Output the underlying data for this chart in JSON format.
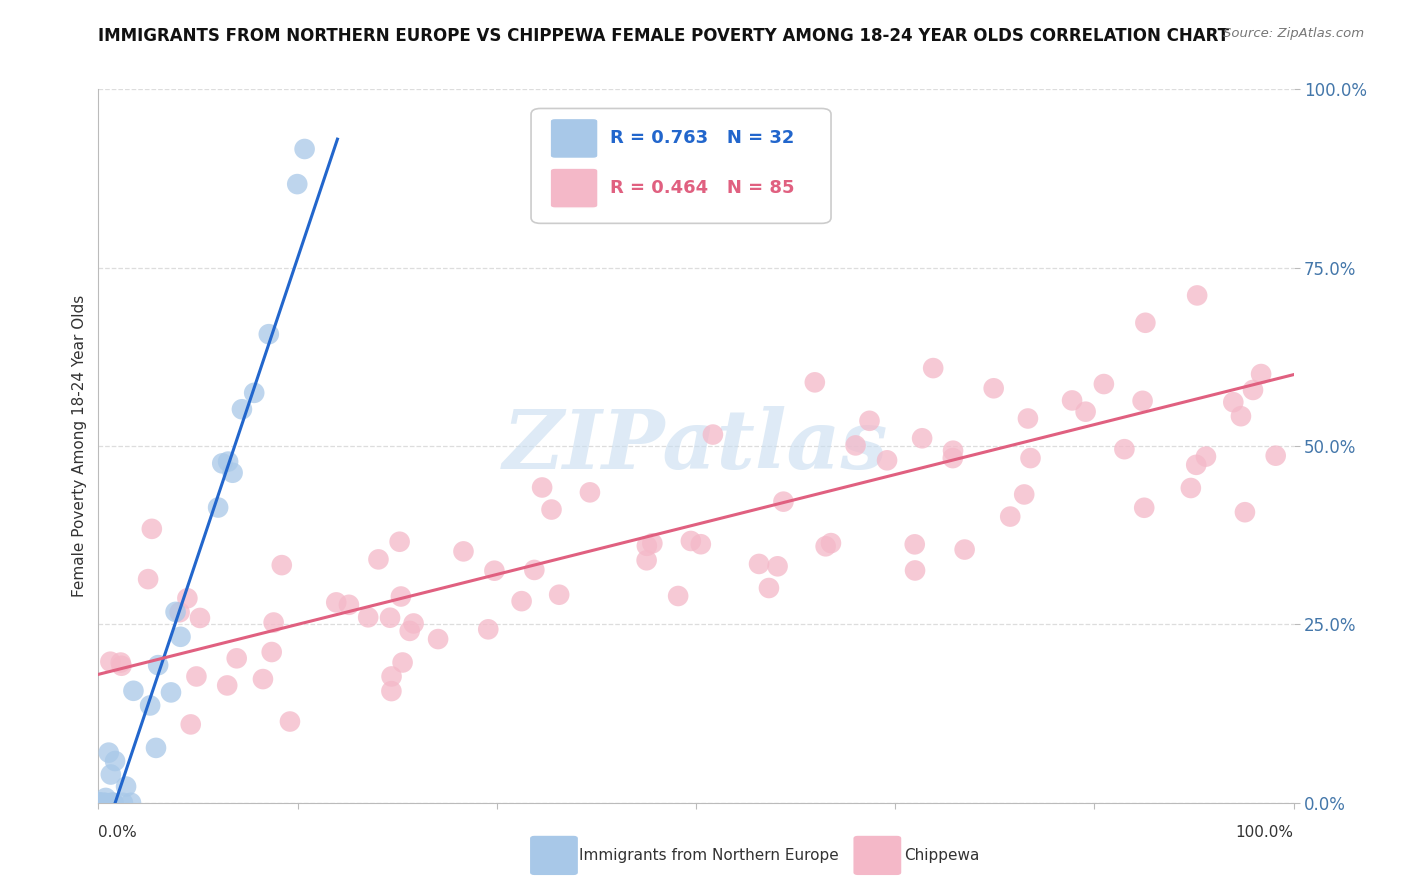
{
  "title": "IMMIGRANTS FROM NORTHERN EUROPE VS CHIPPEWA FEMALE POVERTY AMONG 18-24 YEAR OLDS CORRELATION CHART",
  "source": "Source: ZipAtlas.com",
  "ylabel": "Female Poverty Among 18-24 Year Olds",
  "ytick_labels": [
    "0.0%",
    "25.0%",
    "50.0%",
    "75.0%",
    "100.0%"
  ],
  "ytick_values": [
    0.0,
    0.25,
    0.5,
    0.75,
    1.0
  ],
  "legend_blue_r": "0.763",
  "legend_blue_n": "32",
  "legend_pink_r": "0.464",
  "legend_pink_n": "85",
  "blue_color": "#a8c8e8",
  "pink_color": "#f4b8c8",
  "blue_line_color": "#2266cc",
  "pink_line_color": "#e06080",
  "watermark": "ZIPatlas",
  "watermark_color": "#c8ddf0",
  "background_color": "#ffffff",
  "grid_color": "#dddddd",
  "title_fontsize": 12,
  "axis_label_fontsize": 11,
  "tick_label_color": "#4477aa",
  "blue_line_intercept": -0.07,
  "blue_line_slope": 5.0,
  "pink_line_intercept": 0.18,
  "pink_line_slope": 0.42
}
